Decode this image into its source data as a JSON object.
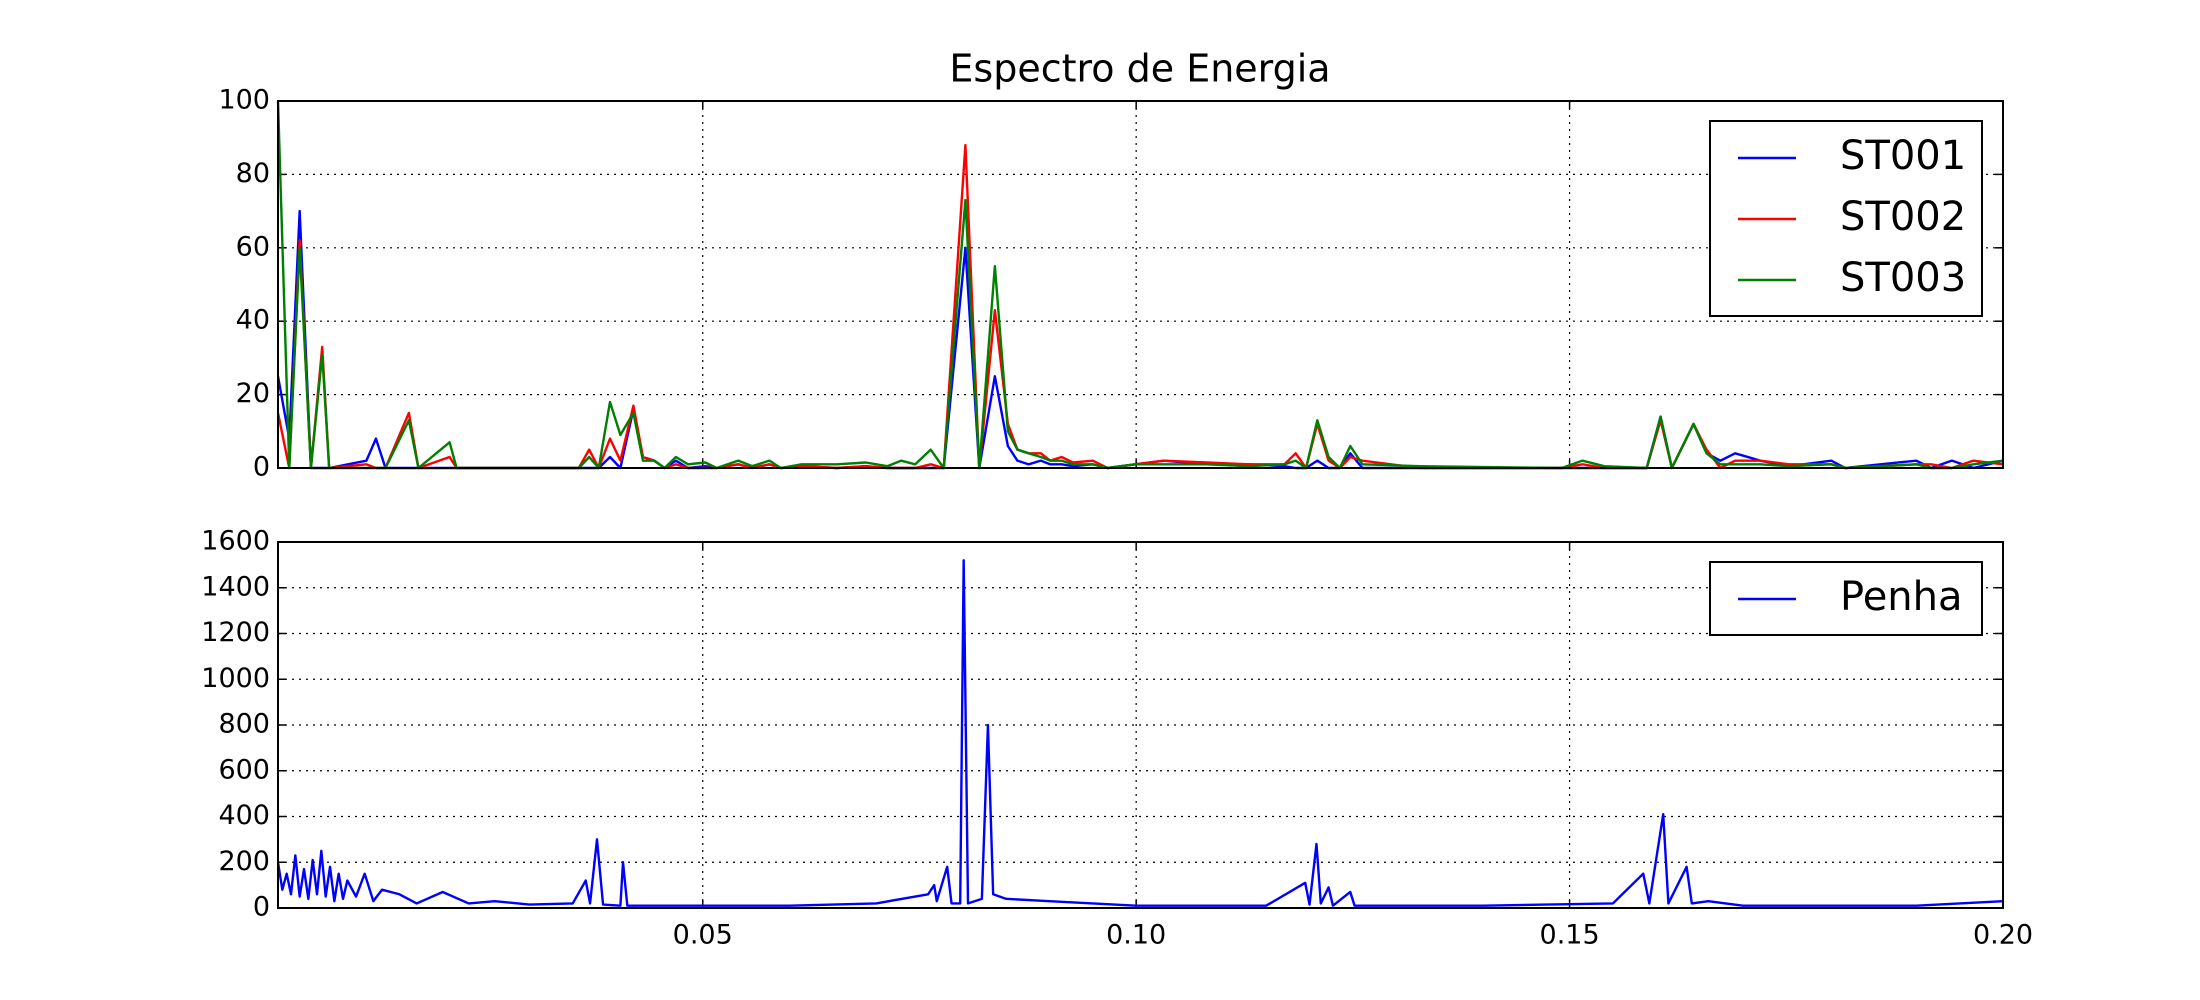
{
  "chart_data": [
    {
      "type": "line",
      "title": "Espectro de Energia",
      "x": [
        0.001,
        0.0023,
        0.0035,
        0.0048,
        0.0061,
        0.0069,
        0.0112,
        0.0123,
        0.0134,
        0.0161,
        0.0172,
        0.0208,
        0.0216,
        0.0357,
        0.0369,
        0.038,
        0.0393,
        0.0405,
        0.042,
        0.0431,
        0.0444,
        0.0456,
        0.0469,
        0.0483,
        0.0503,
        0.0516,
        0.0541,
        0.0557,
        0.0577,
        0.059,
        0.0614,
        0.0655,
        0.0688,
        0.0713,
        0.0729,
        0.0745,
        0.0763,
        0.0778,
        0.0803,
        0.0819,
        0.0837,
        0.0852,
        0.0863,
        0.0876,
        0.089,
        0.0901,
        0.0914,
        0.0927,
        0.095,
        0.0967,
        0.0999,
        0.1032,
        0.1081,
        0.113,
        0.1171,
        0.1184,
        0.1196,
        0.1209,
        0.1222,
        0.1235,
        0.1247,
        0.1261,
        0.1327,
        0.1491,
        0.1515,
        0.154,
        0.1589,
        0.1605,
        0.1618,
        0.1643,
        0.1658,
        0.1674,
        0.1691,
        0.172,
        0.1753,
        0.1802,
        0.1818,
        0.19,
        0.1917,
        0.1941,
        0.1966,
        0.2
      ],
      "series": [
        {
          "name": "ST001",
          "color": "#0000ff",
          "values": [
            25,
            8,
            70,
            0,
            0,
            0,
            2,
            8,
            0,
            0,
            0,
            0,
            0,
            0,
            0,
            0,
            3,
            0,
            16,
            3,
            2,
            0,
            2,
            0,
            0.5,
            0,
            1,
            0,
            1,
            0,
            0.5,
            0,
            0.5,
            0,
            0,
            0,
            0,
            0,
            60,
            0,
            25,
            6,
            2,
            1,
            2,
            1,
            1,
            0.5,
            1,
            0,
            1,
            2,
            1,
            1,
            0.5,
            0,
            0,
            2,
            0,
            0,
            4,
            0,
            0,
            0,
            0,
            0,
            0,
            14,
            0,
            12,
            4,
            2,
            4,
            2,
            0.5,
            2,
            0,
            2,
            0,
            2,
            0,
            2
          ]
        },
        {
          "name": "ST002",
          "color": "#ff0000",
          "values": [
            15,
            0,
            62,
            0,
            33,
            0,
            1,
            0,
            0,
            15,
            0,
            3,
            0,
            0,
            5,
            0,
            8,
            2,
            17,
            3,
            2,
            0,
            1,
            0,
            0,
            0,
            1,
            0,
            1,
            0,
            0.5,
            0,
            0.5,
            0,
            0,
            0,
            1,
            0,
            88,
            0,
            43,
            12,
            5,
            4,
            4,
            2,
            3,
            1.5,
            2,
            0,
            1,
            2,
            1.5,
            1,
            1,
            4,
            0,
            12,
            2,
            0,
            3,
            2,
            0,
            0,
            1,
            0,
            0,
            13,
            0,
            12,
            5,
            0,
            2,
            2,
            1,
            1,
            0,
            1,
            1,
            0,
            2,
            1
          ]
        },
        {
          "name": "ST003",
          "color": "#008000",
          "values": [
            100,
            0,
            60,
            0,
            31,
            0,
            0,
            0,
            0,
            13,
            0,
            7,
            0,
            0,
            3,
            0,
            18,
            9,
            15,
            2,
            2,
            0,
            3,
            1,
            1.5,
            0,
            2,
            0.5,
            2,
            0,
            1,
            1,
            1.5,
            0.5,
            2,
            1,
            5,
            0,
            73,
            0,
            55,
            10,
            5,
            4,
            3,
            2,
            2,
            1,
            1,
            0,
            1,
            1,
            1,
            0.5,
            1,
            2,
            0,
            13,
            3,
            0,
            6,
            1,
            0.5,
            0,
            2,
            0.5,
            0,
            14,
            0,
            12,
            4,
            1,
            1,
            1,
            0.5,
            1,
            0,
            1,
            0,
            0,
            1,
            2
          ]
        }
      ],
      "xlim": [
        0.001,
        0.2
      ],
      "xticks": [
        0.05,
        0.1,
        0.15,
        0.2
      ],
      "ylim": [
        0,
        100
      ],
      "yticks": [
        0,
        20,
        40,
        60,
        80,
        100
      ],
      "grid": true,
      "legend": "upper right"
    },
    {
      "type": "line",
      "x": [
        0.001,
        0.0015,
        0.002,
        0.0025,
        0.003,
        0.0035,
        0.004,
        0.0045,
        0.005,
        0.0055,
        0.006,
        0.0065,
        0.007,
        0.0075,
        0.008,
        0.0085,
        0.009,
        0.01,
        0.011,
        0.012,
        0.013,
        0.015,
        0.017,
        0.02,
        0.023,
        0.026,
        0.03,
        0.035,
        0.0365,
        0.037,
        0.0378,
        0.0385,
        0.0405,
        0.0408,
        0.0413,
        0.05,
        0.06,
        0.07,
        0.076,
        0.0767,
        0.077,
        0.0782,
        0.0787,
        0.0797,
        0.0801,
        0.0806,
        0.0822,
        0.0829,
        0.0835,
        0.085,
        0.09,
        0.1,
        0.115,
        0.1195,
        0.12,
        0.1208,
        0.1213,
        0.1222,
        0.1227,
        0.1247,
        0.1252,
        0.14,
        0.155,
        0.1585,
        0.1592,
        0.1608,
        0.1614,
        0.1635,
        0.1641,
        0.166,
        0.17,
        0.19,
        0.2
      ],
      "series": [
        {
          "name": "Penha",
          "color": "#0000ff",
          "values": [
            200,
            80,
            150,
            60,
            230,
            50,
            170,
            40,
            210,
            60,
            250,
            50,
            180,
            30,
            150,
            40,
            120,
            50,
            150,
            30,
            80,
            60,
            20,
            70,
            20,
            30,
            15,
            20,
            120,
            20,
            300,
            15,
            10,
            200,
            10,
            10,
            10,
            20,
            60,
            100,
            30,
            180,
            20,
            20,
            1520,
            20,
            40,
            800,
            60,
            40,
            30,
            10,
            10,
            110,
            15,
            280,
            20,
            90,
            10,
            70,
            10,
            10,
            20,
            150,
            20,
            410,
            20,
            180,
            20,
            30,
            10,
            10,
            30
          ]
        }
      ],
      "xlim": [
        0.001,
        0.2
      ],
      "xticks": [
        0.05,
        {
          "value": 0.1,
          "label": "0.10"
        },
        0.15,
        {
          "value": 0.2,
          "label": "0.20"
        }
      ],
      "ylim": [
        0,
        1600
      ],
      "yticks": [
        0,
        200,
        400,
        600,
        800,
        1000,
        1200,
        1400,
        1600
      ],
      "grid": true,
      "legend": "upper right"
    }
  ]
}
